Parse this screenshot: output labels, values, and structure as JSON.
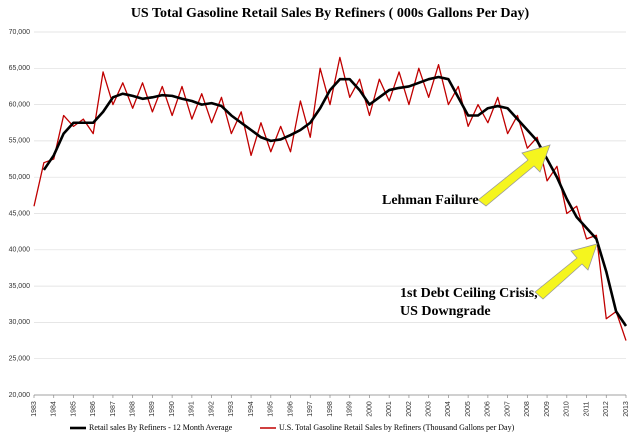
{
  "chart_data": {
    "type": "line",
    "title": "US Total Gasoline Retail Sales By Refiners ( 000s Gallons Per Day)",
    "x": [
      1983,
      1983.5,
      1984,
      1984.5,
      1985,
      1985.5,
      1986,
      1986.5,
      1987,
      1987.5,
      1988,
      1988.5,
      1989,
      1989.5,
      1990,
      1990.5,
      1991,
      1991.5,
      1992,
      1992.5,
      1993,
      1993.5,
      1994,
      1994.5,
      1995,
      1995.5,
      1996,
      1996.5,
      1997,
      1997.5,
      1998,
      1998.5,
      1999,
      1999.5,
      2000,
      2000.5,
      2001,
      2001.5,
      2002,
      2002.5,
      2003,
      2003.5,
      2004,
      2004.5,
      2005,
      2005.5,
      2006,
      2006.5,
      2007,
      2007.5,
      2008,
      2008.5,
      2009,
      2009.5,
      2010,
      2010.5,
      2011,
      2011.5,
      2012,
      2012.5,
      2013
    ],
    "series": [
      {
        "name": "U.S. Total Gasoline Retail Sales by Refiners (Thousand Gallons per Day)",
        "color": "#c00000",
        "values": [
          46000,
          52000,
          52500,
          58500,
          57000,
          58000,
          56000,
          64500,
          60000,
          63000,
          59500,
          63000,
          59000,
          62500,
          58500,
          62500,
          58000,
          61500,
          57500,
          61000,
          56000,
          59000,
          53000,
          57500,
          53500,
          57000,
          53500,
          60500,
          55500,
          65000,
          60000,
          66500,
          61000,
          63500,
          58500,
          63500,
          60500,
          64500,
          60000,
          65000,
          61000,
          65500,
          60000,
          62500,
          57000,
          60000,
          57500,
          61000,
          56000,
          58500,
          54000,
          55500,
          49500,
          51500,
          45000,
          46000,
          41500,
          42000,
          30500,
          31500,
          27500
        ]
      },
      {
        "name": "Retail sales By Refiners - 12 Month Average",
        "color": "#000000",
        "values": [
          null,
          51000,
          53000,
          56000,
          57500,
          57500,
          57500,
          59000,
          61000,
          61500,
          61200,
          60800,
          61000,
          61300,
          61200,
          60800,
          60500,
          60000,
          60200,
          59800,
          58500,
          57500,
          56500,
          55500,
          55000,
          55200,
          55800,
          56500,
          57500,
          59500,
          62000,
          63500,
          63500,
          62000,
          60000,
          61000,
          62000,
          62300,
          62500,
          63000,
          63500,
          63800,
          63500,
          61000,
          58500,
          58500,
          59500,
          59800,
          59500,
          58000,
          56500,
          55000,
          52500,
          50000,
          47000,
          44500,
          43000,
          41500,
          37000,
          31500,
          29500
        ]
      }
    ],
    "xlim": [
      1983,
      2013
    ],
    "xticks": [
      1983,
      1984,
      1985,
      1986,
      1987,
      1988,
      1989,
      1990,
      1991,
      1992,
      1993,
      1994,
      1995,
      1996,
      1997,
      1998,
      1999,
      2000,
      2001,
      2002,
      2003,
      2004,
      2005,
      2006,
      2007,
      2008,
      2009,
      2010,
      2011,
      2012,
      2013
    ],
    "ylim": [
      20000,
      70000
    ],
    "yticks": [
      {
        "value": 20000,
        "label": "20,000"
      },
      {
        "value": 25000,
        "label": "25,000"
      },
      {
        "value": 30000,
        "label": "30,000"
      },
      {
        "value": 35000,
        "label": "35,000"
      },
      {
        "value": 40000,
        "label": "40,000"
      },
      {
        "value": 45000,
        "label": "45,000"
      },
      {
        "value": 50000,
        "label": "50,000"
      },
      {
        "value": 55000,
        "label": "55,000"
      },
      {
        "value": 60000,
        "label": "60,000"
      },
      {
        "value": 65000,
        "label": "65,000"
      },
      {
        "value": 70000,
        "label": "70,000"
      }
    ],
    "grid": true,
    "annotations": [
      "Lehman Failure",
      "1st Debt Ceiling Crisis,",
      "US Downgrade"
    ]
  }
}
